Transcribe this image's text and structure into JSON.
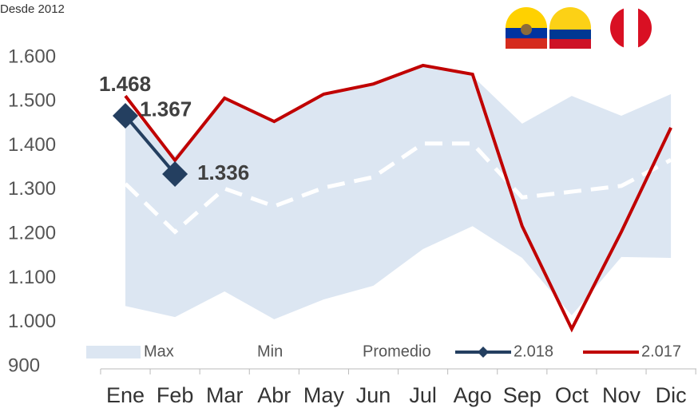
{
  "chart_data": {
    "type": "line",
    "subtitle": "Desde 2012",
    "categories": [
      "Ene",
      "Feb",
      "Mar",
      "Abr",
      "May",
      "Jun",
      "Jul",
      "Ago",
      "Sep",
      "Oct",
      "Nov",
      "Dic"
    ],
    "series": [
      {
        "name": "Max",
        "color": "#dce6f2",
        "values": [
          1495,
          1377,
          1504,
          1455,
          1513,
          1540,
          1582,
          1558,
          1450,
          1513,
          1468,
          1517
        ]
      },
      {
        "name": "Min",
        "color": "#ffffff",
        "values": [
          1037,
          1012,
          1070,
          1007,
          1052,
          1083,
          1166,
          1218,
          1146,
          1016,
          1148,
          1146
        ]
      },
      {
        "name": "Promedio",
        "color": "#ffffff",
        "values": [
          1314,
          1205,
          1303,
          1263,
          1305,
          1329,
          1405,
          1405,
          1283,
          1296,
          1309,
          1368
        ]
      },
      {
        "name": "2.018",
        "color": "#243f60",
        "values": [
          1468,
          1336,
          null,
          null,
          null,
          null,
          null,
          null,
          null,
          null,
          null,
          null
        ],
        "value_labels": [
          "1.468",
          "1.336",
          null,
          null,
          null,
          null,
          null,
          null,
          null,
          null,
          null,
          null
        ]
      },
      {
        "name": "2.017",
        "color": "#c00000",
        "values": [
          1513,
          1367,
          1508,
          1455,
          1517,
          1540,
          1582,
          1562,
          1218,
          985,
          1205,
          1441
        ],
        "value_labels": [
          null,
          "1.367",
          null,
          null,
          null,
          null,
          null,
          null,
          null,
          null,
          null,
          null
        ]
      }
    ],
    "ylim": [
      900,
      1650
    ],
    "yticks": [
      {
        "value": 900,
        "label": "900"
      },
      {
        "value": 1000,
        "label": "1.000"
      },
      {
        "value": 1100,
        "label": "1.100"
      },
      {
        "value": 1200,
        "label": "1.200"
      },
      {
        "value": 1300,
        "label": "1.300"
      },
      {
        "value": 1400,
        "label": "1.400"
      },
      {
        "value": 1500,
        "label": "1.500"
      },
      {
        "value": 1600,
        "label": "1.600"
      }
    ]
  }
}
